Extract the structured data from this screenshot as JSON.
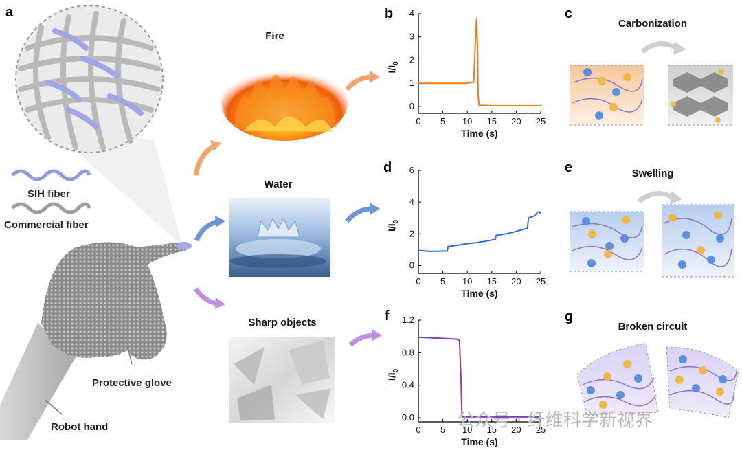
{
  "panel_letters": {
    "a": "a",
    "b": "b",
    "c": "c",
    "d": "d",
    "e": "e",
    "f": "f",
    "g": "g"
  },
  "panel_a": {
    "sih_fiber": "SIH fiber",
    "commercial_fiber": "Commercial fiber",
    "protective_glove": "Protective glove",
    "robot_hand": "Robot hand"
  },
  "scenarios": {
    "fire": "Fire",
    "water": "Water",
    "sharp": "Sharp objects"
  },
  "mechanisms": {
    "c": "Carbonization",
    "e": "Swelling",
    "g": "Broken circuit"
  },
  "watermark": "公众号 · 纤维科学新视界",
  "colors": {
    "fire": "#f07a1a",
    "water": "#2a6fd6",
    "sharp": "#7b3fbf"
  },
  "chart_data": [
    {
      "panel": "b",
      "type": "line",
      "xlabel": "Time (s)",
      "ylabel": "I/I0",
      "xlim": [
        0,
        25
      ],
      "ylim": [
        -0.3,
        4
      ],
      "xticks": [
        0,
        5,
        10,
        15,
        20,
        25
      ],
      "yticks": [
        0,
        1,
        2,
        3,
        4
      ],
      "series": [
        {
          "x": [
            0,
            5,
            10,
            11.3,
            11.6,
            11.9,
            12.1,
            12.2,
            12.4,
            15,
            20,
            25
          ],
          "y": [
            1,
            1,
            1,
            1.05,
            2.5,
            3.8,
            2.5,
            0.5,
            0.05,
            0.03,
            0.03,
            0.03
          ]
        }
      ]
    },
    {
      "panel": "d",
      "type": "line",
      "xlabel": "Time (s)",
      "ylabel": "I/I0",
      "xlim": [
        0,
        25
      ],
      "ylim": [
        -0.5,
        6
      ],
      "xticks": [
        0,
        5,
        10,
        15,
        20,
        25
      ],
      "yticks": [
        0,
        2,
        4,
        6
      ],
      "series": [
        {
          "x": [
            0,
            2,
            4,
            5.9,
            6.1,
            8,
            10,
            12,
            14,
            15.7,
            15.9,
            18,
            20,
            21,
            22.3,
            22.5,
            23,
            23.5,
            24,
            24.3,
            24.7,
            25
          ],
          "y": [
            0.95,
            0.9,
            0.9,
            0.92,
            1.2,
            1.28,
            1.38,
            1.45,
            1.55,
            1.65,
            1.9,
            2.0,
            2.15,
            2.25,
            2.35,
            3.0,
            3.05,
            3.1,
            3.2,
            3.35,
            3.4,
            3.25
          ]
        }
      ]
    },
    {
      "panel": "f",
      "type": "line",
      "xlabel": "Time (s)",
      "ylabel": "I/I0",
      "xlim": [
        0,
        25
      ],
      "ylim": [
        -0.05,
        1.2
      ],
      "xticks": [
        0,
        5,
        10,
        15,
        20,
        25
      ],
      "yticks": [
        0.0,
        0.4,
        0.8,
        1.2
      ],
      "ytick_labels": [
        "0.0",
        "0.4",
        "0.8",
        "1.2"
      ],
      "series": [
        {
          "x": [
            0,
            4,
            7,
            8,
            8.4,
            8.7,
            8.9,
            9.1,
            15,
            20,
            25
          ],
          "y": [
            0.99,
            0.98,
            0.97,
            0.965,
            0.95,
            0.5,
            0.03,
            0.01,
            0.01,
            0.01,
            0.01
          ]
        }
      ]
    }
  ]
}
